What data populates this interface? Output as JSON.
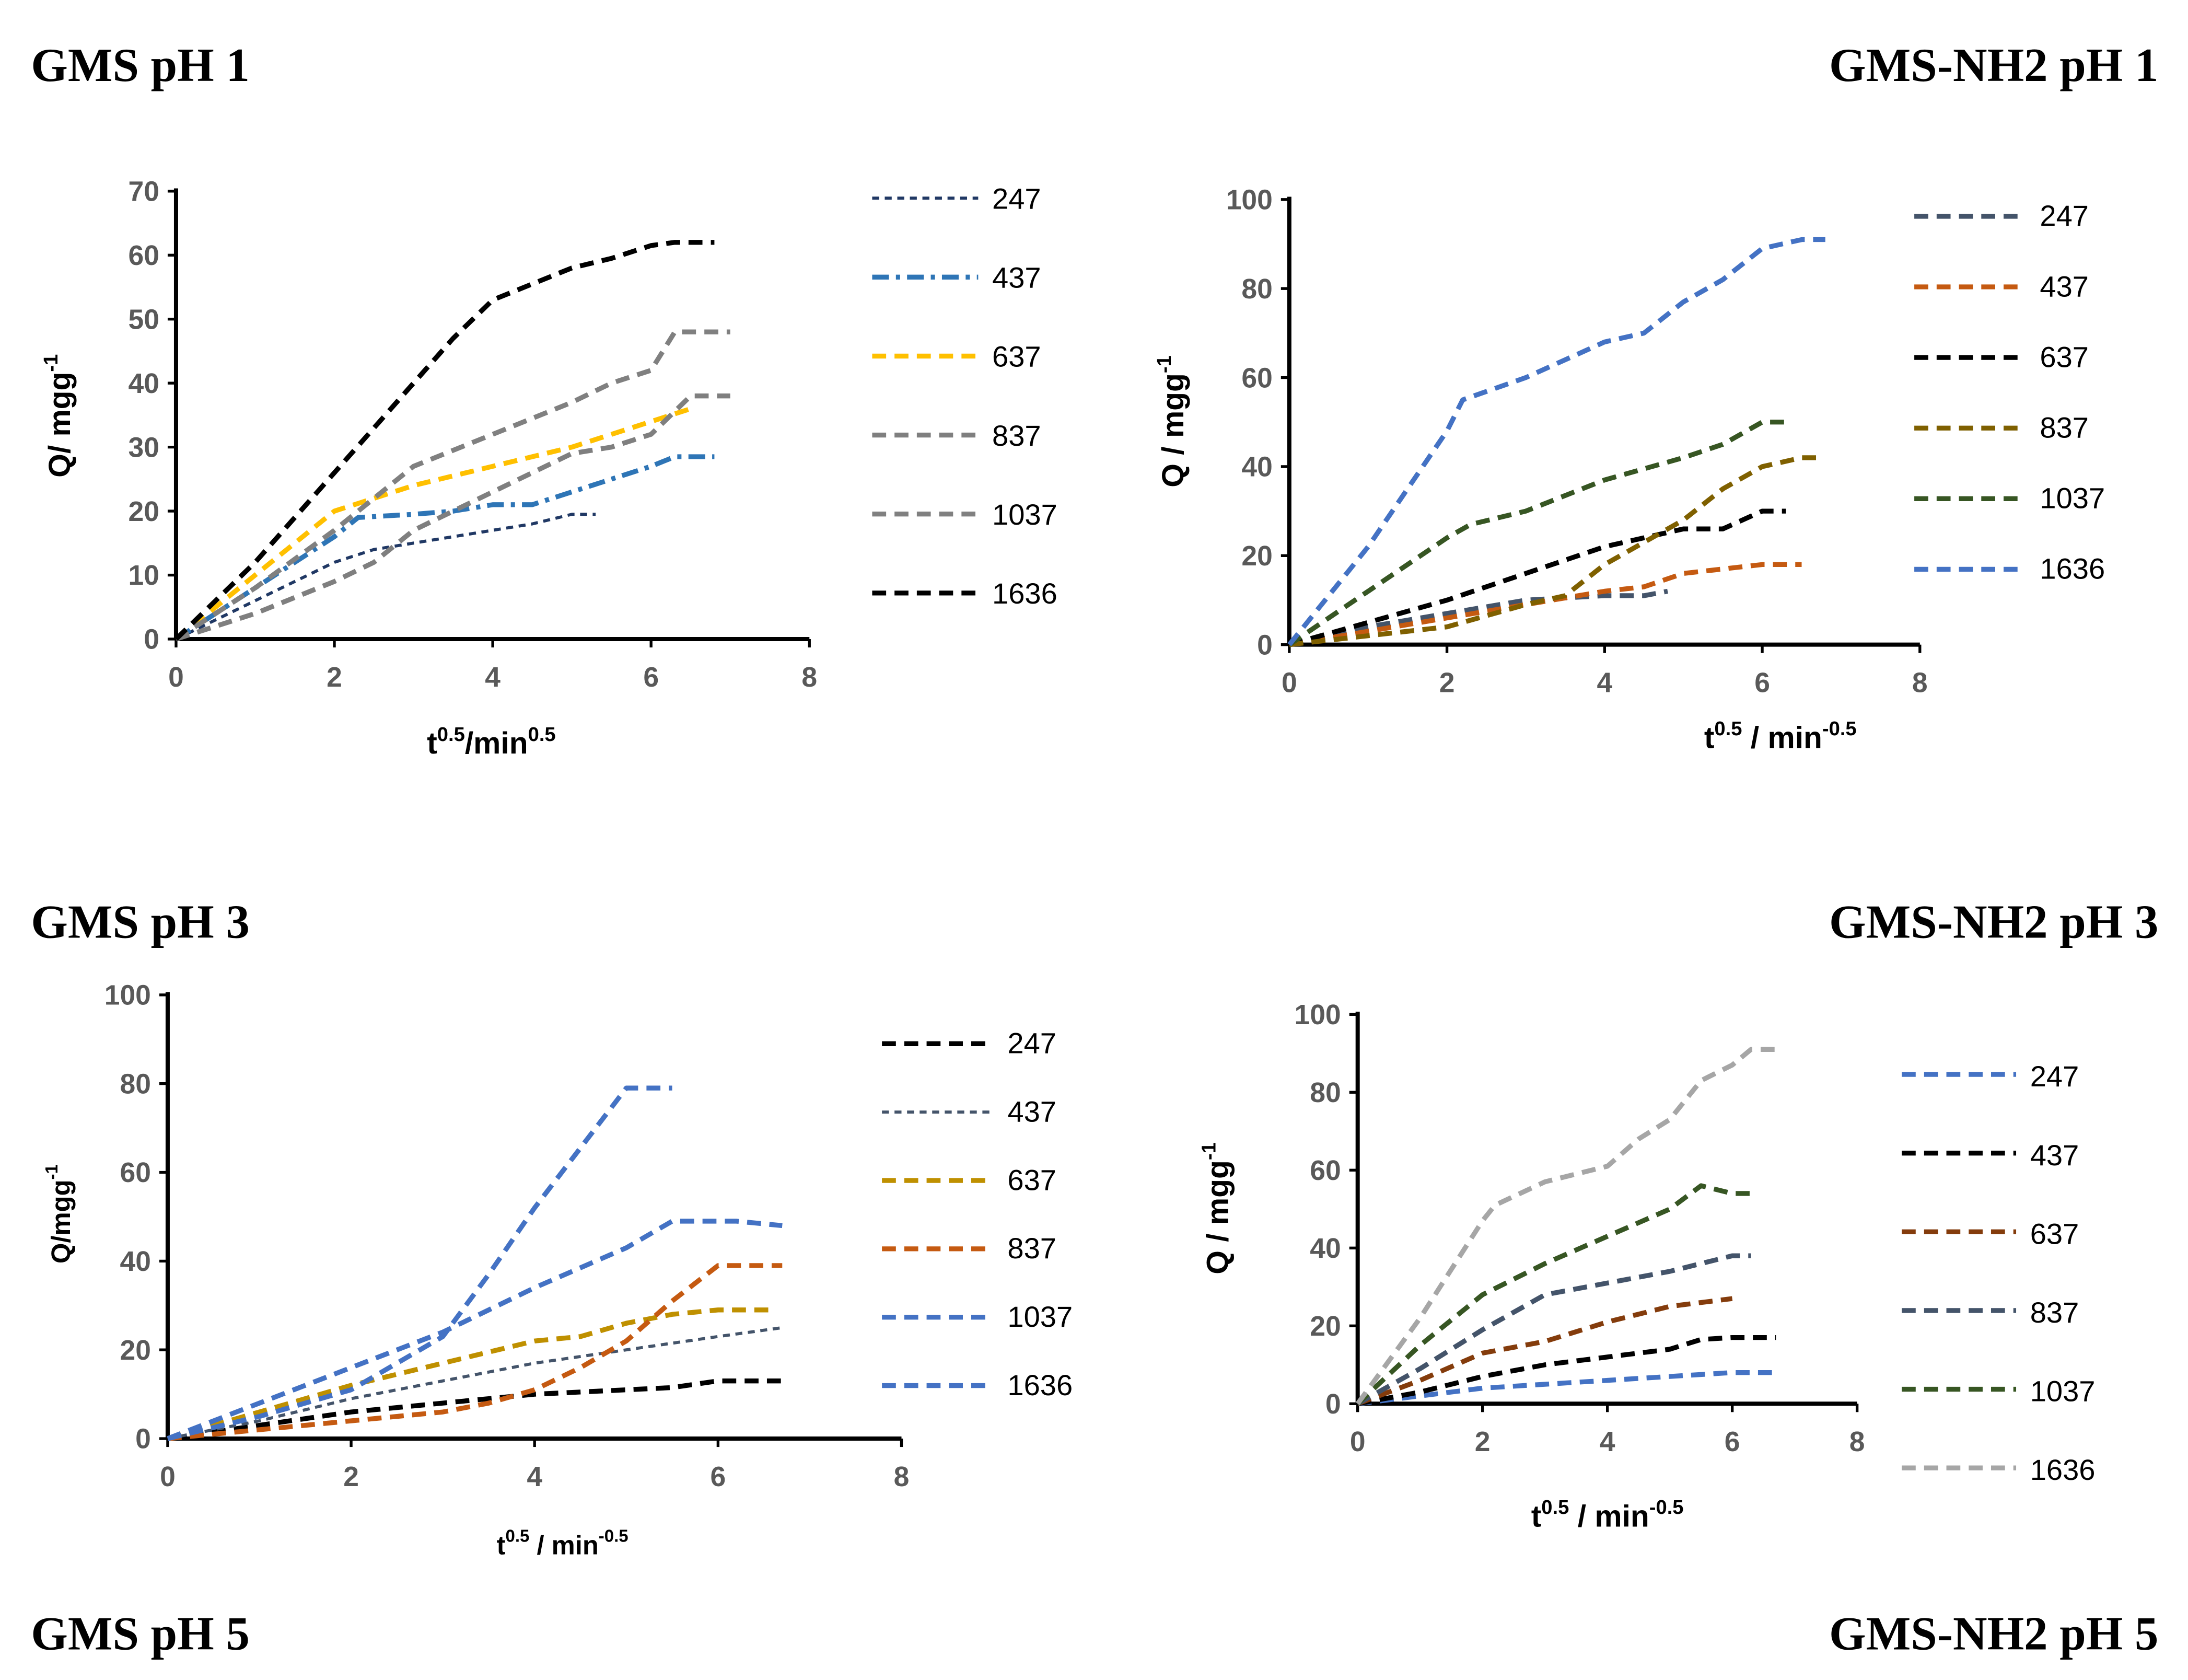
{
  "panel_titles": [
    "GMS pH 1",
    "GMS-NH2 pH 1",
    "GMS pH 3",
    "GMS-NH2 pH 3",
    "GMS pH 5",
    "GMS-NH2 pH 5"
  ],
  "chart_data": [
    {
      "type": "line",
      "x_label": [
        "t",
        "0.5",
        "/min",
        "0.5"
      ],
      "y_label": [
        "Q/ mgg",
        "-1"
      ],
      "xlim": [
        0,
        8
      ],
      "ylim": [
        0,
        70
      ],
      "xticks": [
        0,
        2,
        4,
        6,
        8
      ],
      "yticks": [
        0,
        10,
        20,
        30,
        40,
        50,
        60,
        70
      ],
      "series": [
        {
          "name": "247",
          "color": "#203864",
          "dash": "fine",
          "x": [
            0,
            0.5,
            1,
            1.5,
            2,
            2.5,
            3,
            4,
            4.5,
            5,
            5.3
          ],
          "values": [
            0,
            3,
            6,
            9,
            12,
            14,
            15,
            17,
            18,
            19.5,
            19.5
          ]
        },
        {
          "name": "437",
          "color": "#2e75b6",
          "dash": "dashdot",
          "x": [
            0,
            1,
            2,
            2.3,
            3,
            3.5,
            4,
            4.5,
            5,
            5.5,
            6,
            6.3,
            6.8
          ],
          "values": [
            0,
            8,
            16,
            19,
            19.5,
            20,
            21,
            21,
            23,
            25,
            27,
            28.5,
            28.5
          ]
        },
        {
          "name": "637",
          "color": "#ffc000",
          "dash": "dash",
          "x": [
            0,
            0.5,
            1,
            2,
            3,
            4,
            5,
            5.5,
            6,
            6.5
          ],
          "values": [
            0,
            5,
            10,
            20,
            24,
            27,
            30,
            32,
            34,
            36
          ]
        },
        {
          "name": "837",
          "color": "#7f7f7f",
          "dash": "dash",
          "x": [
            0,
            0.5,
            1,
            2,
            2.5,
            3,
            4,
            5,
            5.5,
            6,
            6.5,
            7
          ],
          "values": [
            0,
            2,
            4,
            9,
            12,
            17,
            23,
            29,
            30,
            32,
            38,
            38
          ]
        },
        {
          "name": "1037",
          "color": "#808080",
          "dash": "dash",
          "x": [
            0,
            1,
            2,
            2.5,
            3,
            4,
            5,
            5.5,
            6,
            6.3,
            7
          ],
          "values": [
            0,
            8,
            17,
            22,
            27,
            32,
            37,
            40,
            42,
            48,
            48
          ]
        },
        {
          "name": "1636",
          "color": "#000000",
          "dash": "dash",
          "x": [
            0,
            1,
            2,
            3,
            3.5,
            4,
            5,
            5.5,
            6,
            6.3,
            6.8
          ],
          "values": [
            0,
            12,
            26,
            40,
            47,
            53,
            58,
            59.5,
            61.5,
            62,
            62
          ]
        }
      ]
    },
    {
      "type": "line",
      "x_label": [
        "t",
        "0.5",
        " / min",
        "-0.5"
      ],
      "y_label": [
        "Q / mgg",
        "-1"
      ],
      "xlim": [
        0,
        8
      ],
      "ylim": [
        0,
        100
      ],
      "xticks": [
        0,
        2,
        4,
        6,
        8
      ],
      "yticks": [
        0,
        20,
        40,
        60,
        80,
        100
      ],
      "series": [
        {
          "name": "247",
          "color": "#44546a",
          "dash": "dash",
          "x": [
            0,
            1,
            2,
            3,
            4,
            4.5,
            4.8
          ],
          "values": [
            0,
            4,
            7,
            10,
            11,
            11,
            12
          ]
        },
        {
          "name": "437",
          "color": "#c55a11",
          "dash": "dash",
          "x": [
            0,
            1,
            2,
            3,
            4,
            4.5,
            5,
            5.5,
            6,
            6.5
          ],
          "values": [
            0,
            3,
            6,
            9,
            12,
            13,
            16,
            17,
            18,
            18
          ]
        },
        {
          "name": "637",
          "color": "#000000",
          "dash": "dash",
          "x": [
            0,
            1,
            2,
            3,
            4,
            4.5,
            5,
            5.5,
            6,
            6.3
          ],
          "values": [
            0,
            5,
            10,
            16,
            22,
            24,
            26,
            26,
            30,
            30
          ]
        },
        {
          "name": "837",
          "color": "#7f6000",
          "dash": "dash",
          "x": [
            0,
            1,
            2,
            3,
            3.5,
            4,
            5,
            5.5,
            6,
            6.5,
            6.7
          ],
          "values": [
            0,
            2,
            4,
            9,
            11,
            18,
            28,
            35,
            40,
            42,
            42
          ]
        },
        {
          "name": "1037",
          "color": "#375623",
          "dash": "dash",
          "x": [
            0,
            1,
            2,
            2.3,
            3,
            4,
            5,
            5.5,
            6,
            6.3
          ],
          "values": [
            0,
            12,
            24,
            27,
            30,
            37,
            42,
            45,
            50,
            50
          ]
        },
        {
          "name": "1636",
          "color": "#4472c4",
          "dash": "dash",
          "x": [
            0,
            1,
            2,
            2.2,
            3,
            3.5,
            4,
            4.5,
            5,
            5.5,
            6,
            6.5,
            6.8
          ],
          "values": [
            0,
            22,
            48,
            55,
            60,
            64,
            68,
            70,
            77,
            82,
            89,
            91,
            91
          ]
        }
      ]
    },
    {
      "type": "line",
      "x_label": [
        "t",
        "0.5",
        " / min",
        "-0.5"
      ],
      "y_label": [
        "Q/mgg",
        "-1"
      ],
      "xlim": [
        0,
        8
      ],
      "ylim": [
        0,
        100
      ],
      "xticks": [
        0,
        2,
        4,
        6,
        8
      ],
      "yticks": [
        0,
        20,
        40,
        60,
        80,
        100
      ],
      "series": [
        {
          "name": "247",
          "color": "#000000",
          "dash": "dash",
          "x": [
            0,
            1,
            2,
            3,
            4,
            4.5,
            5,
            5.5,
            6,
            6.7
          ],
          "values": [
            0,
            3,
            6,
            8,
            10,
            10.5,
            11,
            11.5,
            13,
            13
          ]
        },
        {
          "name": "437",
          "color": "#44546a",
          "dash": "fine",
          "x": [
            0,
            1,
            2,
            3,
            4,
            5,
            6,
            6.7
          ],
          "values": [
            0,
            4,
            9,
            13,
            17,
            20,
            23,
            25
          ]
        },
        {
          "name": "637",
          "color": "#bf9000",
          "dash": "dash",
          "x": [
            0,
            1,
            2,
            3,
            4,
            4.5,
            5,
            5.5,
            6,
            6.6
          ],
          "values": [
            0,
            6,
            12,
            17,
            22,
            23,
            26,
            28,
            29,
            29
          ]
        },
        {
          "name": "837",
          "color": "#c55a11",
          "dash": "dash",
          "x": [
            0,
            1,
            2,
            3,
            3.5,
            4,
            4.5,
            5,
            5.5,
            6,
            6.7
          ],
          "values": [
            0,
            2,
            4,
            6,
            8,
            11,
            16,
            22,
            31,
            39,
            39
          ]
        },
        {
          "name": "1037",
          "color": "#4472c4",
          "dash": "dash",
          "x": [
            0,
            1,
            2,
            3,
            4,
            5,
            5.5,
            6.2,
            6.7
          ],
          "values": [
            0,
            8,
            16,
            24,
            34,
            43,
            49,
            49,
            48
          ]
        },
        {
          "name": "1636",
          "color": "#4472c4",
          "dash": "dash",
          "x": [
            0,
            1,
            2,
            3,
            3.5,
            4,
            5,
            5.5
          ],
          "values": [
            0,
            5,
            11,
            23,
            37,
            52,
            79,
            79
          ]
        }
      ]
    },
    {
      "type": "line",
      "x_label": [
        "t",
        "0.5",
        " / min",
        "-0.5"
      ],
      "y_label": [
        "Q / mgg",
        "-1"
      ],
      "xlim": [
        0,
        8
      ],
      "ylim": [
        0,
        100
      ],
      "xticks": [
        0,
        2,
        4,
        6,
        8
      ],
      "yticks": [
        0,
        20,
        40,
        60,
        80,
        100
      ],
      "series": [
        {
          "name": "247",
          "color": "#4472c4",
          "dash": "dash",
          "x": [
            0,
            1,
            2,
            3,
            4,
            5,
            6,
            6.7
          ],
          "values": [
            0,
            2,
            4,
            5,
            6,
            7,
            8,
            8
          ]
        },
        {
          "name": "437",
          "color": "#000000",
          "dash": "dash",
          "x": [
            0,
            1,
            2,
            3,
            4,
            5,
            5.5,
            6,
            6.7
          ],
          "values": [
            0,
            3,
            7,
            10,
            12,
            14,
            16.5,
            17,
            17
          ]
        },
        {
          "name": "637",
          "color": "#843c0c",
          "dash": "dash",
          "x": [
            0,
            1,
            2,
            3,
            4,
            5,
            5.5,
            6
          ],
          "values": [
            0,
            6,
            13,
            16,
            21,
            25,
            26,
            27
          ]
        },
        {
          "name": "837",
          "color": "#44546a",
          "dash": "dash",
          "x": [
            0,
            1,
            2,
            3,
            4,
            5,
            5.5,
            6,
            6.3
          ],
          "values": [
            0,
            9,
            19,
            28,
            31,
            34,
            36,
            38,
            38
          ]
        },
        {
          "name": "1037",
          "color": "#375623",
          "dash": "dash",
          "x": [
            0,
            1,
            2,
            3,
            4,
            5,
            5.5,
            6,
            6.3
          ],
          "values": [
            0,
            15,
            28,
            36,
            43,
            50,
            56,
            54,
            54
          ]
        },
        {
          "name": "1636",
          "color": "#a6a6a6",
          "dash": "dash",
          "x": [
            0,
            1,
            2,
            2.2,
            3,
            4,
            4.5,
            5,
            5.5,
            6,
            6.3,
            6.7
          ],
          "values": [
            0,
            22,
            47,
            51,
            57,
            61,
            68,
            73,
            83,
            87,
            91,
            91
          ]
        }
      ]
    }
  ]
}
